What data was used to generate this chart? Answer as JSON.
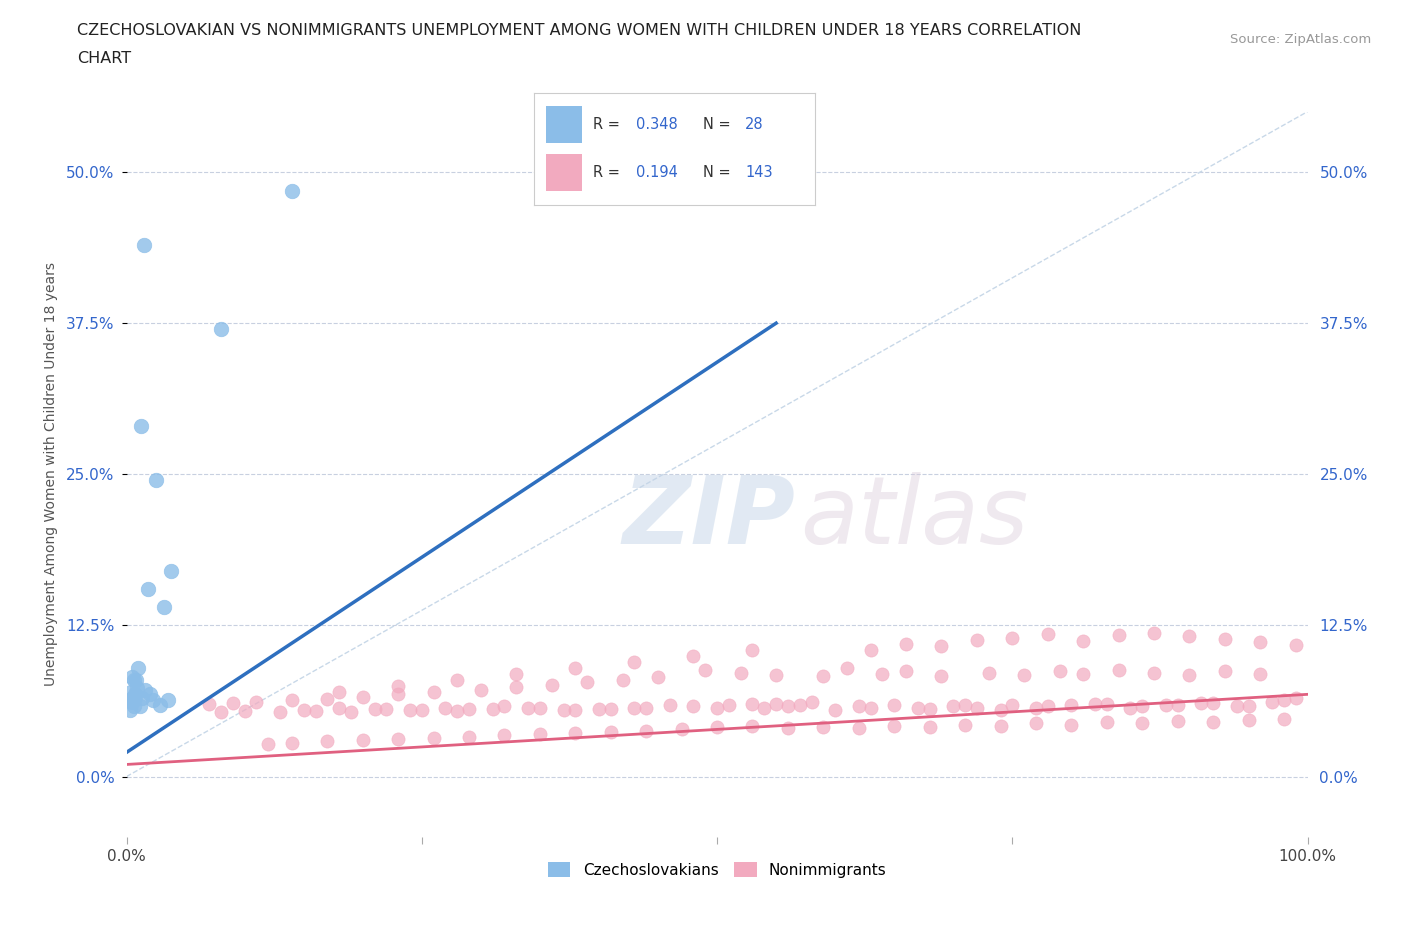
{
  "title_line1": "CZECHOSLOVAKIAN VS NONIMMIGRANTS UNEMPLOYMENT AMONG WOMEN WITH CHILDREN UNDER 18 YEARS CORRELATION",
  "title_line2": "CHART",
  "source": "Source: ZipAtlas.com",
  "ylabel": "Unemployment Among Women with Children Under 18 years",
  "xlim": [
    0,
    1.0
  ],
  "ylim": [
    -0.05,
    0.55
  ],
  "ytick_vals": [
    0.0,
    0.125,
    0.25,
    0.375,
    0.5
  ],
  "ytick_labels": [
    "0.0%",
    "12.5%",
    "25.0%",
    "37.5%",
    "50.0%"
  ],
  "xtick_vals": [
    0.0,
    0.25,
    0.5,
    0.75,
    1.0
  ],
  "xtick_labels": [
    "0.0%",
    "",
    "",
    "",
    "100.0%"
  ],
  "color_czech": "#8BBDE8",
  "color_nonimm": "#F2AABF",
  "line_color_czech": "#2E6FBF",
  "line_color_nonimm": "#E06080",
  "diag_color": "#C8D8E8",
  "R_czech": 0.348,
  "N_czech": 28,
  "R_nonimm": 0.194,
  "N_nonimm": 143,
  "watermark_ZIP": "ZIP",
  "watermark_atlas": "atlas",
  "background_color": "#FFFFFF",
  "grid_color": "#C8D0E0",
  "legend_color_text": "#3366CC",
  "czech_x": [
    0.022,
    0.015,
    0.038,
    0.012,
    0.025,
    0.008,
    0.018,
    0.032,
    0.01,
    0.005,
    0.006,
    0.004,
    0.007,
    0.009,
    0.003,
    0.011,
    0.013,
    0.016,
    0.02,
    0.028,
    0.006,
    0.004,
    0.005,
    0.007,
    0.003,
    0.035,
    0.14,
    0.08
  ],
  "czech_y": [
    0.063,
    0.44,
    0.17,
    0.29,
    0.245,
    0.08,
    0.155,
    0.14,
    0.09,
    0.082,
    0.08,
    0.07,
    0.068,
    0.073,
    0.063,
    0.058,
    0.065,
    0.072,
    0.068,
    0.059,
    0.058,
    0.064,
    0.062,
    0.066,
    0.055,
    0.063,
    0.484,
    0.37
  ],
  "nonimm_x": [
    0.55,
    0.62,
    0.58,
    0.67,
    0.71,
    0.74,
    0.78,
    0.82,
    0.85,
    0.88,
    0.91,
    0.94,
    0.97,
    0.99,
    0.5,
    0.53,
    0.56,
    0.46,
    0.43,
    0.4,
    0.37,
    0.35,
    0.32,
    0.29,
    0.27,
    0.24,
    0.21,
    0.18,
    0.15,
    0.1,
    0.08,
    0.6,
    0.63,
    0.65,
    0.68,
    0.7,
    0.72,
    0.75,
    0.77,
    0.8,
    0.83,
    0.86,
    0.89,
    0.92,
    0.95,
    0.98,
    0.48,
    0.51,
    0.54,
    0.57,
    0.44,
    0.41,
    0.38,
    0.34,
    0.31,
    0.28,
    0.25,
    0.22,
    0.19,
    0.16,
    0.13,
    0.61,
    0.64,
    0.66,
    0.69,
    0.73,
    0.76,
    0.79,
    0.81,
    0.84,
    0.87,
    0.9,
    0.93,
    0.96,
    0.49,
    0.52,
    0.55,
    0.59,
    0.45,
    0.42,
    0.39,
    0.36,
    0.33,
    0.3,
    0.26,
    0.23,
    0.2,
    0.17,
    0.14,
    0.11,
    0.09,
    0.07,
    0.62,
    0.65,
    0.68,
    0.71,
    0.74,
    0.77,
    0.8,
    0.83,
    0.86,
    0.89,
    0.92,
    0.95,
    0.98,
    0.5,
    0.53,
    0.56,
    0.59,
    0.47,
    0.44,
    0.41,
    0.38,
    0.35,
    0.32,
    0.29,
    0.26,
    0.23,
    0.2,
    0.17,
    0.14,
    0.12,
    0.63,
    0.66,
    0.69,
    0.72,
    0.75,
    0.78,
    0.81,
    0.84,
    0.87,
    0.9,
    0.93,
    0.96,
    0.99,
    0.18,
    0.23,
    0.28,
    0.33,
    0.38,
    0.43,
    0.48,
    0.53
  ],
  "nonimm_y": [
    0.06,
    0.058,
    0.062,
    0.057,
    0.059,
    0.055,
    0.058,
    0.06,
    0.057,
    0.059,
    0.061,
    0.058,
    0.062,
    0.065,
    0.057,
    0.06,
    0.058,
    0.059,
    0.057,
    0.056,
    0.055,
    0.057,
    0.058,
    0.056,
    0.057,
    0.055,
    0.056,
    0.057,
    0.055,
    0.054,
    0.053,
    0.055,
    0.057,
    0.059,
    0.056,
    0.058,
    0.057,
    0.059,
    0.057,
    0.059,
    0.06,
    0.058,
    0.059,
    0.061,
    0.058,
    0.063,
    0.058,
    0.059,
    0.057,
    0.059,
    0.057,
    0.056,
    0.055,
    0.057,
    0.056,
    0.054,
    0.055,
    0.056,
    0.053,
    0.054,
    0.053,
    0.09,
    0.085,
    0.087,
    0.083,
    0.086,
    0.084,
    0.087,
    0.085,
    0.088,
    0.086,
    0.084,
    0.087,
    0.085,
    0.088,
    0.086,
    0.084,
    0.083,
    0.082,
    0.08,
    0.078,
    0.076,
    0.074,
    0.072,
    0.07,
    0.068,
    0.066,
    0.064,
    0.063,
    0.062,
    0.061,
    0.06,
    0.04,
    0.042,
    0.041,
    0.043,
    0.042,
    0.044,
    0.043,
    0.045,
    0.044,
    0.046,
    0.045,
    0.047,
    0.048,
    0.041,
    0.042,
    0.04,
    0.041,
    0.039,
    0.038,
    0.037,
    0.036,
    0.035,
    0.034,
    0.033,
    0.032,
    0.031,
    0.03,
    0.029,
    0.028,
    0.027,
    0.105,
    0.11,
    0.108,
    0.113,
    0.115,
    0.118,
    0.112,
    0.117,
    0.119,
    0.116,
    0.114,
    0.111,
    0.109,
    0.07,
    0.075,
    0.08,
    0.085,
    0.09,
    0.095,
    0.1,
    0.105
  ]
}
